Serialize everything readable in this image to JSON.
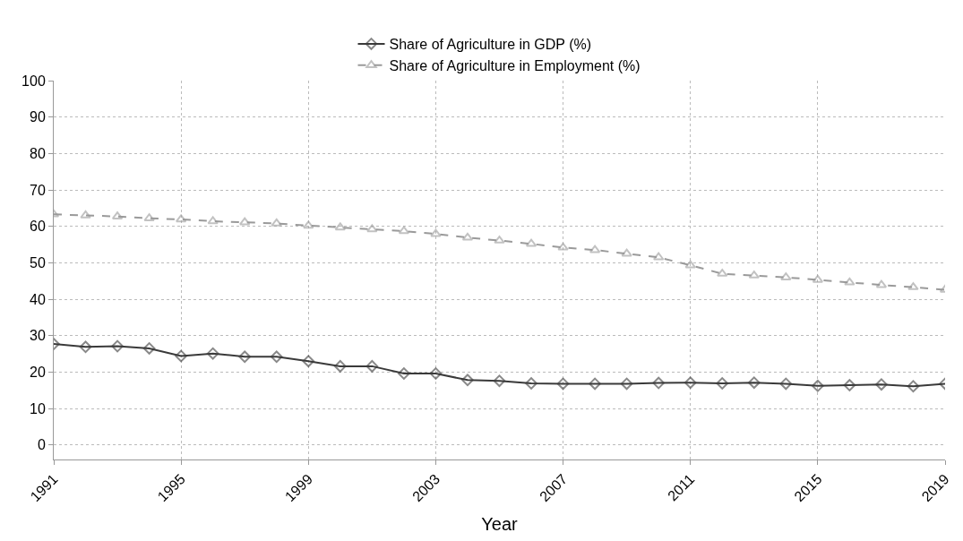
{
  "chart_data": {
    "type": "line",
    "xlabel": "Year",
    "x": [
      1991,
      1992,
      1993,
      1994,
      1995,
      1996,
      1997,
      1998,
      1999,
      2000,
      2001,
      2002,
      2003,
      2004,
      2005,
      2006,
      2007,
      2008,
      2009,
      2010,
      2011,
      2012,
      2013,
      2014,
      2015,
      2016,
      2017,
      2018,
      2019
    ],
    "series": [
      {
        "name": "Share of Agriculture in GDP (%)",
        "color": "#3a3a3a",
        "marker": "diamond",
        "line_style": "solid",
        "values": [
          27.7,
          26.9,
          27.1,
          26.5,
          24.4,
          25.1,
          24.2,
          24.2,
          23.0,
          21.6,
          21.6,
          19.6,
          19.6,
          17.8,
          17.6,
          16.9,
          16.8,
          16.8,
          16.8,
          17.0,
          17.1,
          16.9,
          17.1,
          16.8,
          16.2,
          16.4,
          16.6,
          16.1,
          16.8
        ]
      },
      {
        "name": "Share of Agriculture in Employment (%)",
        "color": "#9a9a9a",
        "marker": "triangle",
        "line_style": "dashed",
        "values": [
          63.3,
          63.0,
          62.7,
          62.2,
          61.9,
          61.4,
          61.1,
          60.8,
          60.2,
          59.7,
          59.2,
          58.7,
          57.9,
          56.9,
          56.1,
          55.2,
          54.2,
          53.5,
          52.5,
          51.5,
          49.3,
          47.0,
          46.5,
          46.0,
          45.3,
          44.6,
          43.9,
          43.3,
          42.6
        ]
      }
    ],
    "xlim": [
      1991,
      2019
    ],
    "xticks": [
      1991,
      1995,
      1999,
      2003,
      2007,
      2011,
      2015,
      2019
    ],
    "ylim": [
      -4,
      100
    ],
    "yticks": [
      0,
      10,
      20,
      30,
      40,
      50,
      60,
      70,
      80,
      90,
      100
    ],
    "grid": true,
    "legend": "top"
  }
}
